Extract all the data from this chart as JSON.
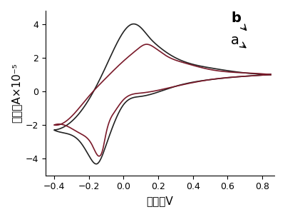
{
  "xlim": [
    -0.45,
    0.87
  ],
  "ylim": [
    -5.0,
    4.8
  ],
  "xticks": [
    -0.4,
    -0.2,
    0.0,
    0.2,
    0.4,
    0.6,
    0.8
  ],
  "yticks": [
    -4,
    -2,
    0,
    2,
    4
  ],
  "xlabel": "电压／V",
  "ylabel": "电流／A×10⁻⁵",
  "curve_color_b": "#222222",
  "curve_color_a": "#7a1a2a",
  "label_b": "b",
  "label_a": "a",
  "background_color": "#ffffff",
  "figsize": [
    4.0,
    3.04
  ],
  "dpi": 100
}
